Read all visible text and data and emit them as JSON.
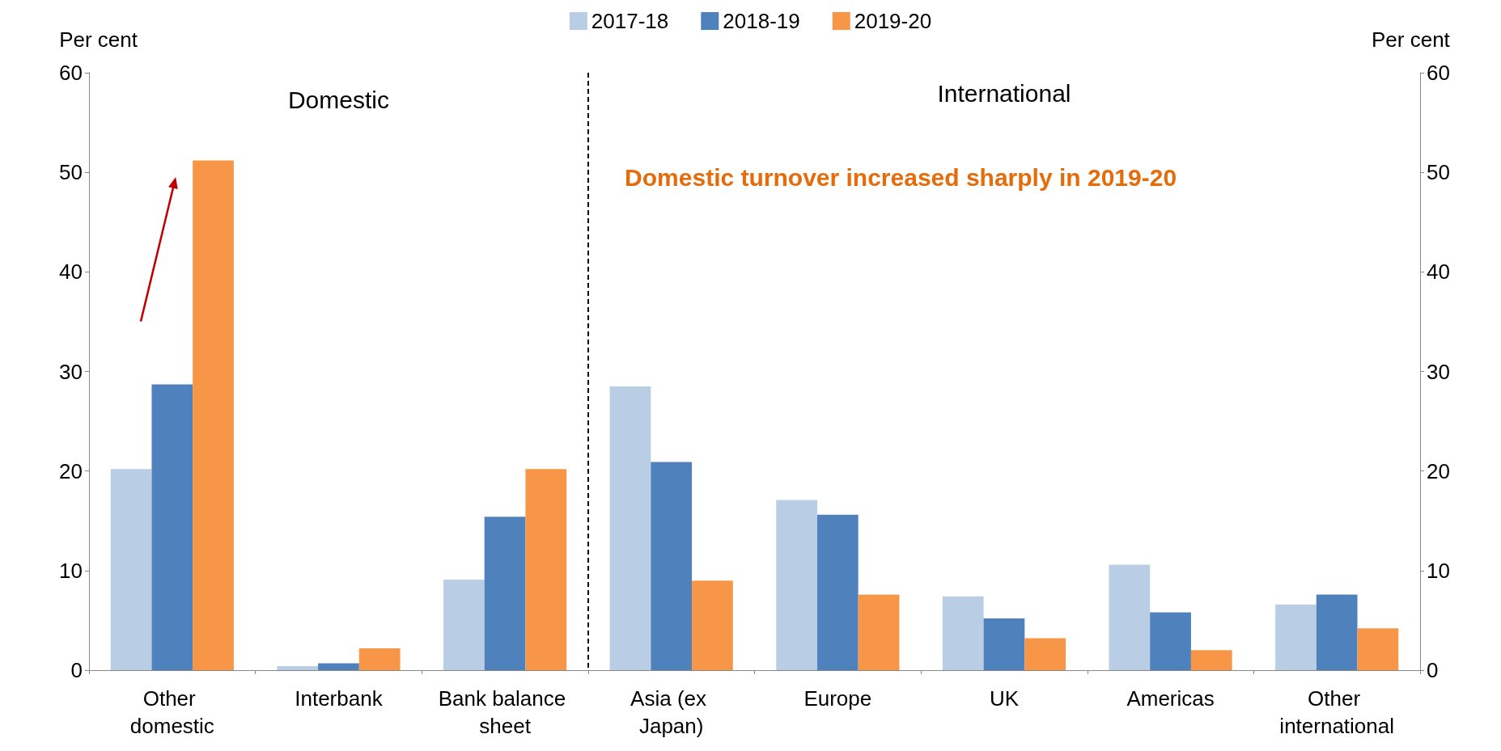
{
  "chart_data": {
    "type": "bar",
    "categories": [
      "Other domestic",
      "Interbank",
      "Bank balance sheet",
      "Asia (ex Japan)",
      "Europe",
      "UK",
      "Americas",
      "Other international"
    ],
    "series": [
      {
        "name": "2017-18",
        "color": "#b9cde5",
        "values": [
          20.2,
          0.4,
          9.1,
          28.5,
          17.1,
          7.4,
          10.6,
          6.6
        ]
      },
      {
        "name": "2018-19",
        "color": "#4f81bd",
        "values": [
          28.7,
          0.7,
          15.4,
          20.9,
          15.6,
          5.2,
          5.8,
          7.6
        ]
      },
      {
        "name": "2019-20",
        "color": "#f79646",
        "values": [
          51.2,
          2.2,
          20.2,
          9.0,
          7.6,
          3.2,
          2.0,
          4.2
        ]
      }
    ],
    "ylabel": "Per cent",
    "y2label": "Per cent",
    "ylim": [
      0,
      60
    ],
    "yticks": [
      0,
      10,
      20,
      30,
      40,
      50,
      60
    ],
    "y2lim": [
      0,
      60
    ],
    "y2ticks": [
      0,
      10,
      20,
      30,
      40,
      50,
      60
    ],
    "annotations": [
      "Domestic",
      "International",
      "Domestic turnover increased sharply in 2019-20"
    ],
    "legend": "top",
    "grid": false
  }
}
